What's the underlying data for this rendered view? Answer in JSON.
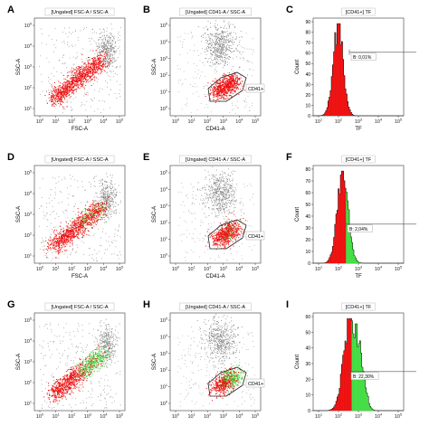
{
  "figure": {
    "colors": {
      "red": "#ee1111",
      "green": "#44dd44",
      "gray": "#8a8a8a",
      "black": "#000000",
      "frame": "#555555"
    },
    "panels": [
      {
        "letter": "A",
        "title": "[Ungated] FSC-A / SSC-A",
        "xlabel": "FSC-A",
        "ylabel": "SSC-A",
        "kind": "fsc_ssc",
        "stage": 0
      },
      {
        "letter": "B",
        "title": "[Ungated] CD41-A / SSC-A",
        "xlabel": "CD41-A",
        "ylabel": "SSC-A",
        "kind": "cd41_ssc",
        "stage": 0,
        "gate_label": "CD41+"
      },
      {
        "letter": "C",
        "title": "[CD41+] TF",
        "xlabel": "TF",
        "ylabel": "Count",
        "kind": "histogram",
        "stage": 0,
        "marker_label": "B: 0,01%"
      },
      {
        "letter": "D",
        "title": "[Ungated] FSC-A / SSC-A",
        "xlabel": "FSC-A",
        "ylabel": "SSC-A",
        "kind": "fsc_ssc",
        "stage": 1
      },
      {
        "letter": "E",
        "title": "[Ungated] CD41-A / SSC-A",
        "xlabel": "CD41-A",
        "ylabel": "SSC-A",
        "kind": "cd41_ssc",
        "stage": 1,
        "gate_label": "CD41+"
      },
      {
        "letter": "F",
        "title": "[CD41+] TF",
        "xlabel": "TF",
        "ylabel": "Count",
        "kind": "histogram",
        "stage": 1,
        "marker_label": "B: 2,04%"
      },
      {
        "letter": "G",
        "title": "[Ungated] FSC-A / SSC-A",
        "xlabel": "FSC-A",
        "ylabel": "SSC-A",
        "kind": "fsc_ssc",
        "stage": 2
      },
      {
        "letter": "H",
        "title": "[Ungated] CD41-A / SSC-A",
        "xlabel": "CD41-A",
        "ylabel": "SSC-A",
        "kind": "cd41_ssc",
        "stage": 2,
        "gate_label": "CD41+"
      },
      {
        "letter": "I",
        "title": "[CD41+] TF",
        "xlabel": "TF",
        "ylabel": "Count",
        "kind": "histogram",
        "stage": 2,
        "marker_label": "B: 22,30%"
      }
    ]
  },
  "chart_data": [
    {
      "type": "scatter",
      "panel": "A",
      "title": "[Ungated] FSC-A / SSC-A",
      "xlabel": "FSC-A",
      "ylabel": "SSC-A",
      "xscale": "log",
      "yscale": "log",
      "xticks": [
        "10^0",
        "10^1",
        "10^2",
        "10^3",
        "10^4",
        "10^5"
      ],
      "yticks": [
        "10^1",
        "10^2",
        "10^3",
        "10^4",
        "10^5"
      ],
      "populations": [
        "platelets (red)",
        "debris/other (gray)"
      ]
    },
    {
      "type": "scatter",
      "panel": "B",
      "title": "[Ungated] CD41-A / SSC-A",
      "xlabel": "CD41-A",
      "ylabel": "SSC-A",
      "xscale": "log",
      "yscale": "log",
      "xticks": [
        "10^0",
        "10^1",
        "10^2",
        "10^3",
        "10^4",
        "10^5"
      ],
      "yticks": [
        "10^0",
        "10^1",
        "10^2",
        "10^3",
        "10^4",
        "10^5"
      ],
      "gate": "CD41+"
    },
    {
      "type": "bar",
      "panel": "C",
      "title": "[CD41+] TF",
      "xlabel": "TF",
      "ylabel": "Count",
      "xscale": "log",
      "xticks": [
        "10^1",
        "10^2",
        "10^3",
        "10^4",
        "10^5"
      ],
      "yticks": [
        0,
        10,
        20,
        30,
        40,
        50,
        60,
        70,
        80,
        90
      ],
      "ylim": [
        0,
        90
      ],
      "marker": "B",
      "marker_percent": 0.01,
      "peak_count": 85
    },
    {
      "type": "scatter",
      "panel": "D",
      "title": "[Ungated] FSC-A / SSC-A",
      "xlabel": "FSC-A",
      "ylabel": "SSC-A",
      "xscale": "log",
      "yscale": "log",
      "xticks": [
        "10^0",
        "10^1",
        "10^2",
        "10^3",
        "10^4",
        "10^5"
      ],
      "yticks": [
        "10^1",
        "10^2",
        "10^3",
        "10^4",
        "10^5"
      ]
    },
    {
      "type": "scatter",
      "panel": "E",
      "title": "[Ungated] CD41-A / SSC-A",
      "xlabel": "CD41-A",
      "ylabel": "SSC-A",
      "xscale": "log",
      "yscale": "log",
      "xticks": [
        "10^0",
        "10^1",
        "10^2",
        "10^3",
        "10^4",
        "10^5"
      ],
      "yticks": [
        "10^0",
        "10^1",
        "10^2",
        "10^3",
        "10^4",
        "10^5"
      ],
      "gate": "CD41+"
    },
    {
      "type": "bar",
      "panel": "F",
      "title": "[CD41+] TF",
      "xlabel": "TF",
      "ylabel": "Count",
      "xscale": "log",
      "xticks": [
        "10^1",
        "10^2",
        "10^3",
        "10^4",
        "10^5"
      ],
      "yticks": [
        0,
        10,
        20,
        30,
        40,
        50,
        60,
        70,
        80
      ],
      "ylim": [
        0,
        80
      ],
      "marker": "B",
      "marker_percent": 2.04,
      "peak_count": 78
    },
    {
      "type": "scatter",
      "panel": "G",
      "title": "[Ungated] FSC-A / SSC-A",
      "xlabel": "FSC-A",
      "ylabel": "SSC-A",
      "xscale": "log",
      "yscale": "log",
      "xticks": [
        "10^0",
        "10^1",
        "10^2",
        "10^3",
        "10^4",
        "10^5"
      ],
      "yticks": [
        "10^1",
        "10^2",
        "10^3",
        "10^4",
        "10^5"
      ]
    },
    {
      "type": "scatter",
      "panel": "H",
      "title": "[Ungated] CD41-A / SSC-A",
      "xlabel": "CD41-A",
      "ylabel": "SSC-A",
      "xscale": "log",
      "yscale": "log",
      "xticks": [
        "10^0",
        "10^1",
        "10^2",
        "10^3",
        "10^4",
        "10^5"
      ],
      "yticks": [
        "10^0",
        "10^1",
        "10^2",
        "10^3",
        "10^4",
        "10^5"
      ],
      "gate": "CD41+"
    },
    {
      "type": "bar",
      "panel": "I",
      "title": "[CD41+] TF",
      "xlabel": "TF",
      "ylabel": "Count",
      "xscale": "log",
      "xticks": [
        "10^1",
        "10^2",
        "10^3",
        "10^4",
        "10^5"
      ],
      "yticks": [
        0,
        10,
        20,
        30,
        40,
        50,
        60
      ],
      "ylim": [
        0,
        60
      ],
      "marker": "B",
      "marker_percent": 22.3,
      "peak_count": 57
    }
  ]
}
